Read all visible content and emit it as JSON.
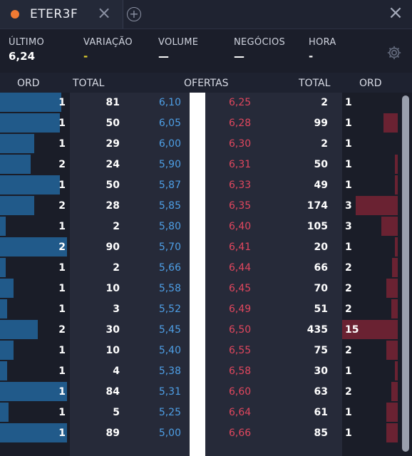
{
  "tab": {
    "title": "ETER3F",
    "close_icon": "close-icon",
    "add_icon": "add-tab-icon"
  },
  "window": {
    "close_icon": "close-icon"
  },
  "stats": [
    {
      "label": "ÚLTIMO",
      "value": "6,24"
    },
    {
      "label": "VARIAÇÃO",
      "value": "-"
    },
    {
      "label": "VOLUME",
      "value": "—"
    },
    {
      "label": "NEGÓCIOS",
      "value": "—"
    },
    {
      "label": "HORA",
      "value": "-"
    }
  ],
  "headers": {
    "bid_ord": "ORD",
    "bid_total": "TOTAL",
    "offers": "OFERTAS",
    "ask_total": "TOTAL",
    "ask_ord": "ORD"
  },
  "rows": [
    {
      "bid_ord": "1",
      "bid_total": "81",
      "bid_price": "6,10",
      "ask_price": "6,25",
      "ask_total": "2",
      "ask_ord": "1",
      "bid_level": 0.9,
      "ask_level": 0.0
    },
    {
      "bid_ord": "1",
      "bid_total": "50",
      "bid_price": "6,05",
      "ask_price": "6,28",
      "ask_total": "99",
      "ask_ord": "1",
      "bid_level": 0.88,
      "ask_level": 0.25
    },
    {
      "bid_ord": "1",
      "bid_total": "29",
      "bid_price": "6,00",
      "ask_price": "6,30",
      "ask_total": "2",
      "ask_ord": "1",
      "bid_level": 0.5,
      "ask_level": 0.0
    },
    {
      "bid_ord": "2",
      "bid_total": "24",
      "bid_price": "5,90",
      "ask_price": "6,31",
      "ask_total": "50",
      "ask_ord": "1",
      "bid_level": 0.45,
      "ask_level": 0.05
    },
    {
      "bid_ord": "1",
      "bid_total": "50",
      "bid_price": "5,87",
      "ask_price": "6,33",
      "ask_total": "49",
      "ask_ord": "1",
      "bid_level": 0.88,
      "ask_level": 0.05
    },
    {
      "bid_ord": "2",
      "bid_total": "28",
      "bid_price": "5,85",
      "ask_price": "6,35",
      "ask_total": "174",
      "ask_ord": "3",
      "bid_level": 0.5,
      "ask_level": 0.75
    },
    {
      "bid_ord": "1",
      "bid_total": "2",
      "bid_price": "5,80",
      "ask_price": "6,40",
      "ask_total": "105",
      "ask_ord": "3",
      "bid_level": 0.08,
      "ask_level": 0.3
    },
    {
      "bid_ord": "2",
      "bid_total": "90",
      "bid_price": "5,70",
      "ask_price": "6,41",
      "ask_total": "20",
      "ask_ord": "1",
      "bid_level": 0.98,
      "ask_level": 0.05
    },
    {
      "bid_ord": "1",
      "bid_total": "2",
      "bid_price": "5,66",
      "ask_price": "6,44",
      "ask_total": "66",
      "ask_ord": "2",
      "bid_level": 0.08,
      "ask_level": 0.1
    },
    {
      "bid_ord": "1",
      "bid_total": "10",
      "bid_price": "5,58",
      "ask_price": "6,45",
      "ask_total": "70",
      "ask_ord": "2",
      "bid_level": 0.2,
      "ask_level": 0.2
    },
    {
      "bid_ord": "1",
      "bid_total": "3",
      "bid_price": "5,52",
      "ask_price": "6,49",
      "ask_total": "51",
      "ask_ord": "2",
      "bid_level": 0.1,
      "ask_level": 0.12
    },
    {
      "bid_ord": "2",
      "bid_total": "30",
      "bid_price": "5,45",
      "ask_price": "6,50",
      "ask_total": "435",
      "ask_ord": "15",
      "bid_level": 0.55,
      "ask_level": 1.0
    },
    {
      "bid_ord": "1",
      "bid_total": "10",
      "bid_price": "5,40",
      "ask_price": "6,55",
      "ask_total": "75",
      "ask_ord": "2",
      "bid_level": 0.2,
      "ask_level": 0.2
    },
    {
      "bid_ord": "1",
      "bid_total": "4",
      "bid_price": "5,38",
      "ask_price": "6,58",
      "ask_total": "30",
      "ask_ord": "1",
      "bid_level": 0.1,
      "ask_level": 0.05
    },
    {
      "bid_ord": "1",
      "bid_total": "84",
      "bid_price": "5,31",
      "ask_price": "6,60",
      "ask_total": "63",
      "ask_ord": "2",
      "bid_level": 0.98,
      "ask_level": 0.12
    },
    {
      "bid_ord": "1",
      "bid_total": "5",
      "bid_price": "5,25",
      "ask_price": "6,64",
      "ask_total": "61",
      "ask_ord": "1",
      "bid_level": 0.12,
      "ask_level": 0.2
    },
    {
      "bid_ord": "1",
      "bid_total": "89",
      "bid_price": "5,00",
      "ask_price": "6,66",
      "ask_total": "85",
      "ask_ord": "1",
      "bid_level": 0.98,
      "ask_level": 0.2
    }
  ]
}
